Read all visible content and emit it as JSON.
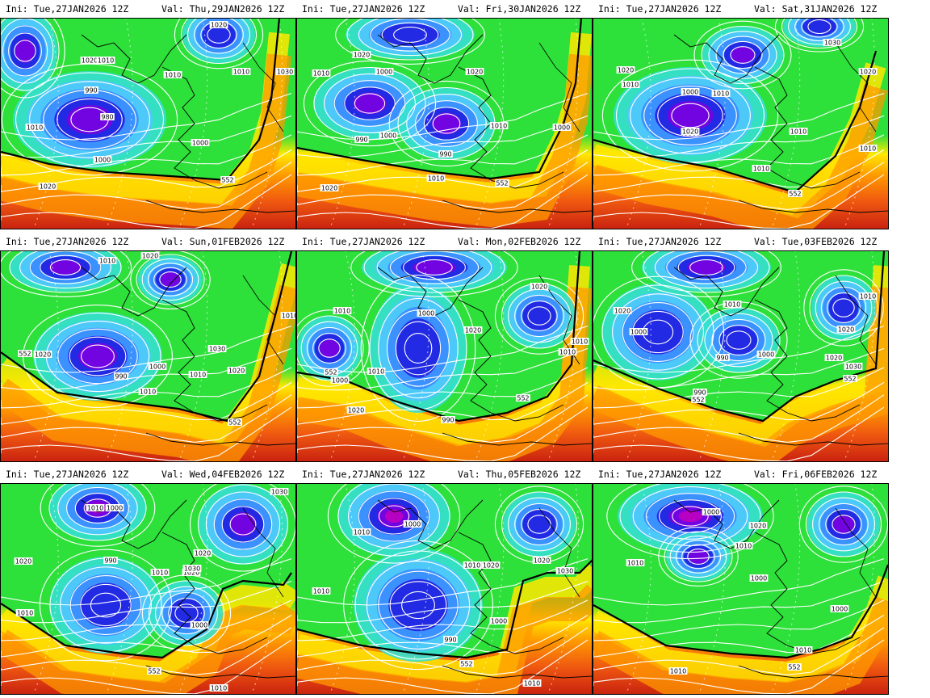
{
  "figure": {
    "panels": [
      {
        "ini": "Ini: Tue,27JAN2026  12Z",
        "valid": "Val: Thu,29JAN2026  12Z",
        "labels": [
          "1020",
          "1020",
          "1010",
          "1010",
          "1010",
          "1030",
          "990",
          "980",
          "1010",
          "1000",
          "1000",
          "1020",
          "552"
        ]
      },
      {
        "ini": "Ini: Tue,27JAN2026  12Z",
        "valid": "Val: Fri,30JAN2026  12Z",
        "labels": [
          "1020",
          "1010",
          "1000",
          "1020",
          "990",
          "1000",
          "990",
          "1010",
          "1000",
          "1010",
          "1020",
          "552"
        ]
      },
      {
        "ini": "Ini: Tue,27JAN2026  12Z",
        "valid": "Val: Sat,31JAN2026  12Z",
        "labels": [
          "1030",
          "1020",
          "1010",
          "1010",
          "1000",
          "990",
          "1020",
          "1010",
          "1010",
          "1010",
          "1020",
          "552"
        ]
      },
      {
        "ini": "Ini: Tue,27JAN2026  12Z",
        "valid": "Val: Sun,01FEB2026  12Z",
        "labels": [
          "1010",
          "1020",
          "1010",
          "1020",
          "990",
          "1000",
          "1030",
          "1010",
          "1010",
          "1020",
          "552",
          "552"
        ]
      },
      {
        "ini": "Ini: Tue,27JAN2026  12Z",
        "valid": "Val: Mon,02FEB2026  12Z",
        "labels": [
          "1020",
          "1010",
          "1000",
          "1020",
          "1010",
          "552",
          "1000",
          "1010",
          "1020",
          "990",
          "1010",
          "552"
        ]
      },
      {
        "ini": "Ini: Tue,27JAN2026  12Z",
        "valid": "Val: Tue,03FEB2026  12Z",
        "labels": [
          "1010",
          "1010",
          "1020",
          "1000",
          "990",
          "1000",
          "1020",
          "1020",
          "1030",
          "552",
          "990",
          "552"
        ]
      },
      {
        "ini": "Ini: Tue,27JAN2026  12Z",
        "valid": "Val: Wed,04FEB2026  12Z",
        "labels": [
          "1010",
          "1000",
          "1020",
          "1030",
          "1020",
          "990",
          "1010",
          "1020",
          "1030",
          "1010",
          "1000",
          "1010",
          "552"
        ]
      },
      {
        "ini": "Ini: Tue,27JAN2026  12Z",
        "valid": "Val: Thu,05FEB2026  12Z",
        "labels": [
          "1010",
          "1000",
          "1010",
          "1020",
          "1020",
          "1030",
          "1010",
          "990",
          "1000",
          "1010",
          "552"
        ]
      },
      {
        "ini": "Ini: Tue,27JAN2026  12Z",
        "valid": "Val: Fri,06FEB2026  12Z",
        "labels": [
          "1000",
          "1020",
          "1010",
          "1010",
          "1000",
          "1000",
          "1010",
          "1010",
          "552"
        ]
      }
    ],
    "colors": {
      "deep_purple": "#c000c0",
      "purple": "#7a00e0",
      "dark_blue": "#2020e0",
      "blue": "#3a8cff",
      "light_blue": "#4fc6ff",
      "cyan": "#35e0d0",
      "green": "#2ee03a",
      "yellow": "#ffe800",
      "orange": "#ff9a00",
      "dark_orange": "#f05a10",
      "red": "#c82010",
      "isobar": "#ffffff",
      "coast": "#000000",
      "ridge_line": "#000000"
    }
  }
}
